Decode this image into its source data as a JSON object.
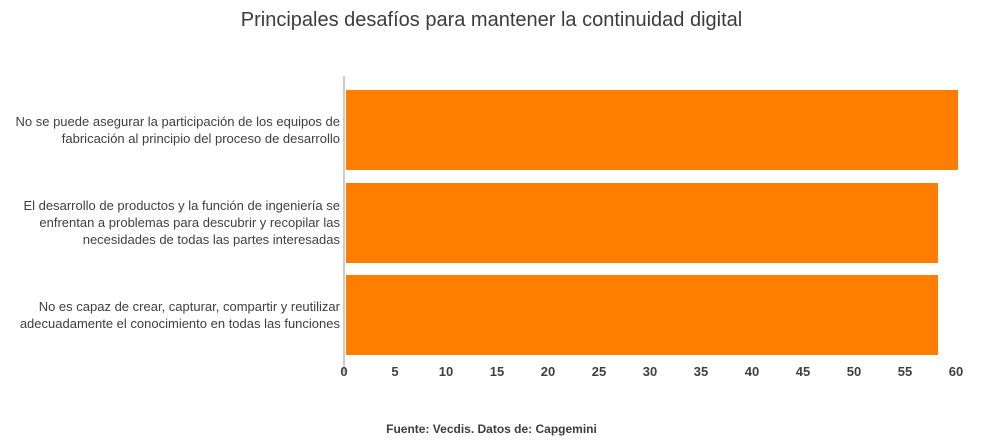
{
  "page": {
    "title": "Principales desafíos para mantener la continuidad digital",
    "source_note": "Fuente: Vecdis. Datos de: Capgemini"
  },
  "colors": {
    "bar": "#ff7e00",
    "axis_line": "#cccccc",
    "text": "#3f3f3f",
    "background": "#ffffff"
  },
  "chart_data": {
    "type": "bar",
    "orientation": "horizontal",
    "title": "Principales desafíos para mantener la continuidad digital",
    "categories": [
      "No se puede asegurar la participación de los equipos de fabricación al principio del proceso de desarrollo",
      "El desarrollo de productos y la función de ingeniería se enfrentan a problemas para descubrir y recopilar las necesidades de todas las partes interesadas",
      "No es capaz de crear, capturar, compartir y reutilizar adecuadamente el conocimiento en todas las funciones"
    ],
    "values": [
      60,
      58,
      58
    ],
    "xlabel": "",
    "ylabel": "",
    "xlim": [
      0,
      60
    ],
    "xticks": [
      0,
      5,
      10,
      15,
      20,
      25,
      30,
      35,
      40,
      45,
      50,
      55,
      60
    ],
    "bar_color": "#ff7e00",
    "grid": false,
    "legend": "none",
    "source": "Fuente: Vecdis. Datos de: Capgemini"
  }
}
